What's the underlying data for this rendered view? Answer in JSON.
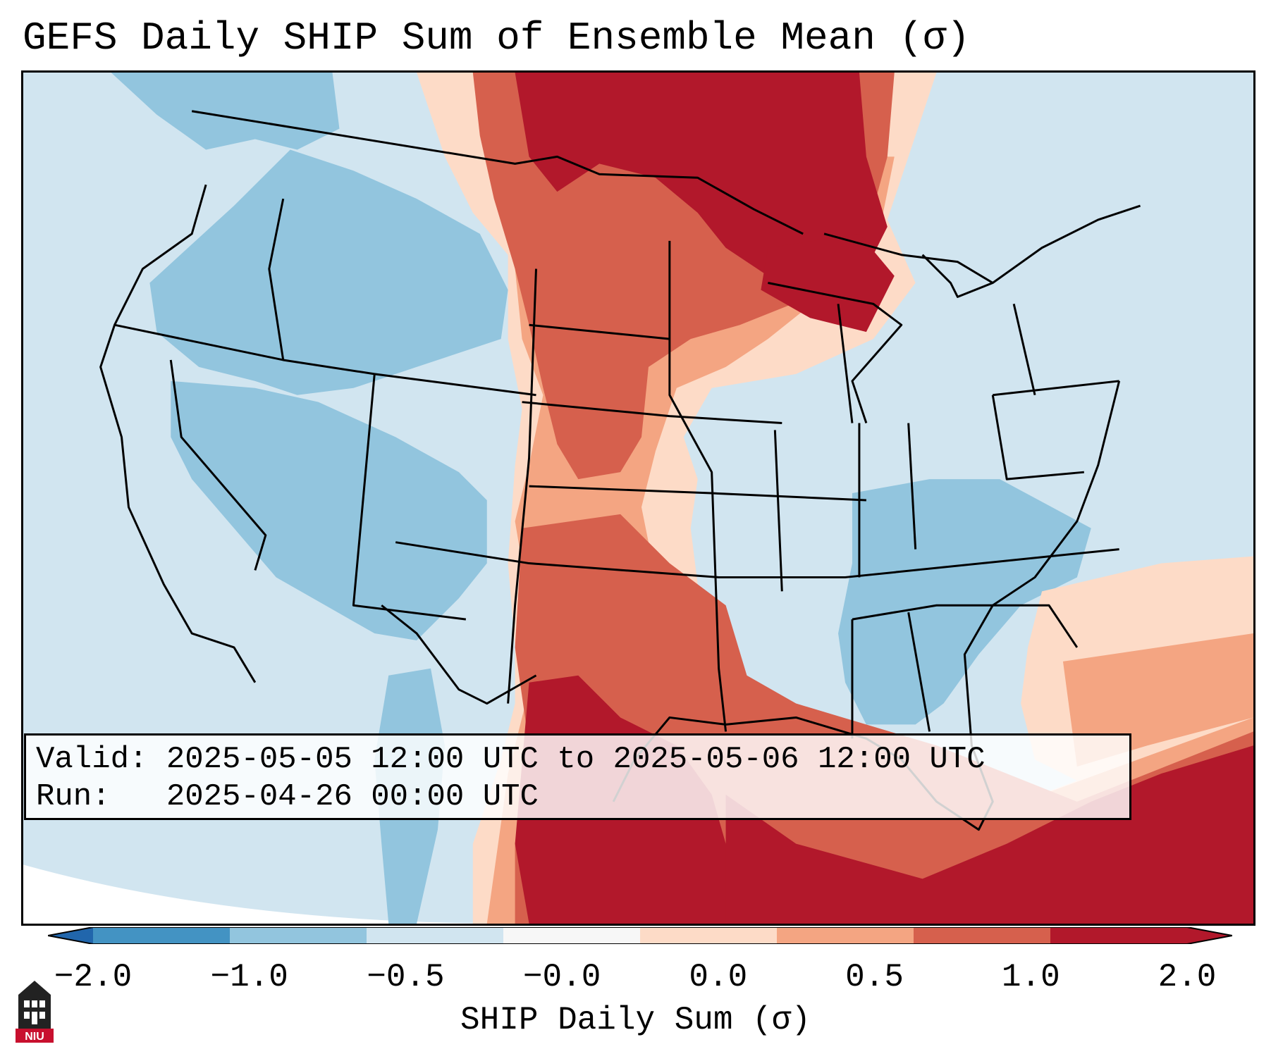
{
  "title": "GEFS Daily SHIP Sum of Ensemble Mean (σ)",
  "info": {
    "valid_line": "Valid: 2025-05-05 12:00 UTC to 2025-05-06 12:00 UTC",
    "run_line": "Run:   2025-04-26 00:00 UTC"
  },
  "colorbar": {
    "label": "SHIP Daily Sum (σ)",
    "tick_labels": [
      "−2.0",
      "−1.0",
      "−0.5",
      "−0.0",
      "0.0",
      "0.5",
      "1.0",
      "2.0"
    ],
    "bin_colors": [
      "#4393c3",
      "#92c5de",
      "#d1e5f0",
      "#f7f7f7",
      "#fddbc7",
      "#f4a582",
      "#d6604d",
      "#b2182b"
    ],
    "extend_low_color": "#2166ac",
    "extend_high_color": "#b2182b"
  },
  "logo": {
    "text": "NIU",
    "color": "#c8102e"
  },
  "map": {
    "projection": "Lambert conformal, contiguous United States",
    "ocean_and_background_color": "#d1e5f0",
    "regions": [
      {
        "name": "Pacific Northwest / Northern Rockies",
        "category": "-1.0 to -0.5"
      },
      {
        "name": "Great Basin / Four Corners",
        "category": "-1.0 to -0.5"
      },
      {
        "name": "Northern Plains / Upper Great Lakes",
        "category": "1.0 to 2.0"
      },
      {
        "name": "Central Plains",
        "category": "0.5 to 1.0"
      },
      {
        "name": "Iowa / Missouri / Kansas",
        "category": "0.0 to 0.5"
      },
      {
        "name": "Texas / western Gulf of Mexico",
        "category": "1.0 to 2.0"
      },
      {
        "name": "Southeast / Tennessee Valley",
        "category": "-1.0 to -0.5"
      },
      {
        "name": "Northeast / Mid-Atlantic",
        "category": "-0.5 to -0.0"
      },
      {
        "name": "Western Atlantic / Caribbean",
        "category": "1.0 to 2.0"
      }
    ]
  }
}
